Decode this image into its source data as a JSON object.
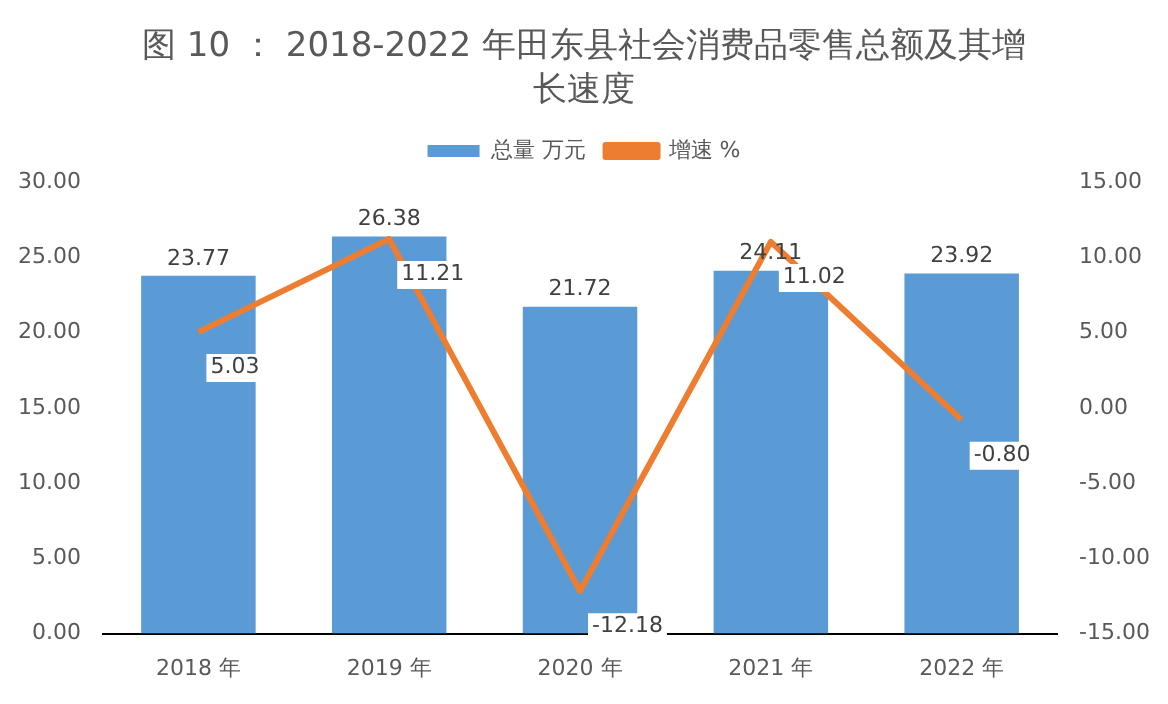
{
  "chart_data": {
    "type": "bar",
    "title": "图 10 ： 2018-2022 年田东县社会消费品零售总额及其增长速度",
    "categories": [
      "2018 年",
      "2019 年",
      "2020 年",
      "2021 年",
      "2022 年"
    ],
    "series": [
      {
        "name": "总量 万元",
        "color": "#5b9bd5",
        "values": [
          23.77,
          26.38,
          21.72,
          24.11,
          23.92
        ],
        "value_labels": [
          "23.77",
          "26.38",
          "21.72",
          "24.11",
          "23.92"
        ]
      },
      {
        "name": "增速 %",
        "type": "line",
        "axis": "y2",
        "color": "#ed7d31",
        "values": [
          5.03,
          11.21,
          -12.18,
          11.02,
          -0.8
        ],
        "value_labels": [
          "5.03",
          "11.21",
          "-12.18",
          "11.02",
          "-0.80"
        ]
      }
    ],
    "ylim": [
      0,
      30
    ],
    "yticks": [
      {
        "value": 0,
        "label": "0.00"
      },
      {
        "value": 5,
        "label": "5.00"
      },
      {
        "value": 10,
        "label": "10.00"
      },
      {
        "value": 15,
        "label": "15.00"
      },
      {
        "value": 20,
        "label": "20.00"
      },
      {
        "value": 25,
        "label": "25.00"
      },
      {
        "value": 30,
        "label": "30.00"
      }
    ],
    "y2lim": [
      -15,
      15
    ],
    "y2ticks": [
      {
        "value": -15,
        "label": "-15.00"
      },
      {
        "value": -10,
        "label": "-10.00"
      },
      {
        "value": -5,
        "label": "-5.00"
      },
      {
        "value": 0,
        "label": "0.00"
      },
      {
        "value": 5,
        "label": "5.00"
      },
      {
        "value": 10,
        "label": "10.00"
      },
      {
        "value": 15,
        "label": "15.00"
      }
    ],
    "grid": false,
    "legend": "top",
    "marker": "none",
    "line_style": "solid"
  }
}
